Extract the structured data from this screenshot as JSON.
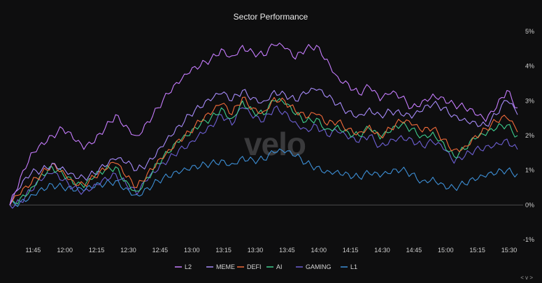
{
  "chart_data": {
    "type": "line",
    "title": "Sector Performance",
    "watermark": "velo",
    "xlabel": "",
    "ylabel": "",
    "x_ticks": [
      "11:45",
      "12:00",
      "12:15",
      "12:30",
      "12:45",
      "13:00",
      "13:15",
      "13:30",
      "13:45",
      "14:00",
      "14:15",
      "14:30",
      "14:45",
      "15:00",
      "15:15",
      "15:30"
    ],
    "y_ticks": [
      "5%",
      "4%",
      "3%",
      "2%",
      "1%",
      "0%",
      "-1%"
    ],
    "ylim": [
      -1,
      5
    ],
    "xlim_minutes": [
      0,
      240
    ],
    "y_axis_position": "right",
    "legend_position": "bottom-center",
    "scroll_hint": "< v >",
    "x_minutes": [
      0,
      5,
      10,
      15,
      20,
      25,
      30,
      35,
      40,
      45,
      50,
      55,
      60,
      65,
      70,
      75,
      80,
      85,
      90,
      95,
      100,
      105,
      110,
      115,
      120,
      125,
      130,
      135,
      140,
      145,
      150,
      155,
      160,
      165,
      170,
      175,
      180,
      185,
      190,
      195,
      200,
      205,
      210,
      215,
      220,
      225,
      230,
      235,
      240
    ],
    "series": [
      {
        "name": "L2",
        "color": "#c77dff",
        "values": [
          0,
          0.8,
          1.5,
          1.8,
          2.0,
          2.2,
          1.9,
          1.6,
          1.8,
          2.2,
          2.6,
          2.3,
          2.0,
          2.4,
          2.8,
          3.2,
          3.5,
          3.8,
          4.0,
          4.2,
          4.5,
          4.3,
          4.6,
          4.4,
          4.3,
          4.6,
          4.5,
          4.2,
          4.5,
          4.6,
          4.2,
          3.7,
          3.5,
          3.2,
          3.4,
          3.0,
          3.2,
          3.1,
          2.8,
          3.0,
          3.2,
          3.1,
          2.9,
          2.8,
          2.6,
          2.4,
          2.8,
          3.3,
          2.8
        ]
      },
      {
        "name": "MEME",
        "color": "#a78bfa",
        "values": [
          0,
          0.5,
          0.9,
          1.0,
          1.2,
          1.1,
          0.9,
          0.8,
          0.9,
          1.1,
          1.3,
          1.2,
          1.0,
          1.2,
          1.6,
          2.0,
          2.3,
          2.6,
          2.8,
          3.0,
          3.2,
          3.0,
          3.3,
          3.1,
          3.0,
          3.3,
          3.2,
          3.0,
          3.2,
          3.3,
          3.1,
          2.9,
          2.7,
          2.6,
          2.8,
          2.6,
          2.7,
          2.6,
          2.5,
          2.7,
          2.9,
          2.8,
          2.6,
          2.5,
          2.4,
          2.3,
          2.6,
          3.0,
          2.6
        ]
      },
      {
        "name": "DEFI",
        "color": "#f26b3a",
        "values": [
          0,
          0.3,
          0.6,
          0.9,
          1.2,
          1.0,
          0.7,
          0.6,
          0.8,
          1.0,
          1.2,
          0.8,
          0.5,
          0.9,
          1.3,
          1.6,
          1.9,
          2.1,
          2.4,
          2.6,
          2.9,
          2.6,
          3.1,
          2.8,
          2.7,
          3.1,
          3.0,
          2.7,
          2.5,
          2.6,
          2.3,
          2.4,
          2.2,
          2.1,
          2.3,
          2.0,
          2.2,
          2.4,
          2.3,
          2.1,
          2.2,
          1.9,
          1.6,
          1.7,
          2.0,
          2.2,
          2.4,
          2.5,
          2.1
        ]
      },
      {
        "name": "AI",
        "color": "#3ecf8e",
        "values": [
          0,
          0.2,
          0.5,
          0.9,
          1.1,
          0.9,
          0.6,
          0.5,
          0.8,
          1.0,
          1.1,
          0.7,
          0.4,
          0.8,
          1.2,
          1.5,
          1.8,
          2.0,
          2.3,
          2.5,
          2.8,
          2.5,
          3.0,
          2.7,
          2.6,
          3.0,
          2.9,
          2.6,
          2.4,
          2.5,
          2.2,
          2.3,
          2.1,
          2.0,
          2.2,
          1.9,
          2.1,
          2.3,
          2.2,
          2.0,
          2.1,
          1.8,
          1.4,
          1.6,
          1.9,
          2.0,
          2.2,
          2.3,
          2.0
        ]
      },
      {
        "name": "GAMING",
        "color": "#6d5fd3",
        "values": [
          0,
          0.1,
          0.4,
          0.7,
          0.9,
          0.7,
          0.5,
          0.4,
          0.6,
          0.8,
          0.9,
          0.6,
          0.3,
          0.7,
          1.0,
          1.3,
          1.6,
          1.8,
          2.1,
          2.3,
          2.6,
          2.3,
          2.8,
          2.5,
          2.4,
          2.8,
          2.7,
          2.4,
          2.2,
          2.3,
          2.0,
          2.1,
          1.9,
          1.8,
          2.0,
          1.7,
          1.9,
          2.0,
          1.9,
          1.7,
          1.8,
          1.6,
          1.2,
          1.4,
          1.6,
          1.7,
          1.8,
          1.9,
          1.6
        ]
      },
      {
        "name": "L1",
        "color": "#3d8fd6",
        "values": [
          0,
          0.1,
          0.3,
          0.5,
          0.6,
          0.5,
          0.4,
          0.4,
          0.5,
          0.6,
          0.7,
          0.5,
          0.3,
          0.5,
          0.7,
          0.8,
          0.9,
          1.0,
          1.1,
          1.2,
          1.3,
          1.2,
          1.4,
          1.3,
          1.3,
          1.5,
          1.5,
          1.4,
          1.2,
          1.1,
          1.0,
          1.0,
          0.9,
          0.8,
          0.9,
          0.8,
          0.9,
          1.0,
          0.9,
          0.7,
          0.8,
          0.6,
          0.5,
          0.6,
          0.7,
          0.8,
          0.9,
          1.0,
          0.9
        ]
      }
    ]
  }
}
